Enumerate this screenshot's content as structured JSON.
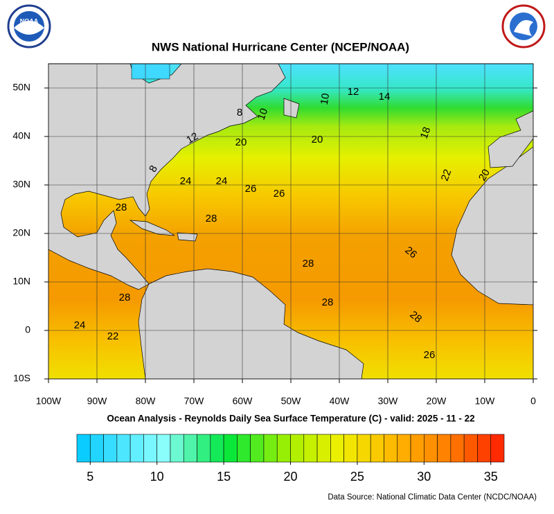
{
  "header": {
    "title": "NWS National Hurricane Center (NCEP/NOAA)",
    "logo_left": "NOAA"
  },
  "map": {
    "lonlim": [
      -100,
      0
    ],
    "latlim": [
      -10,
      55
    ],
    "lon_ticks": [
      {
        "value": -100,
        "label": "100W"
      },
      {
        "value": -90,
        "label": "90W"
      },
      {
        "value": -80,
        "label": "80W"
      },
      {
        "value": -70,
        "label": "70W"
      },
      {
        "value": -60,
        "label": "60W"
      },
      {
        "value": -50,
        "label": "50W"
      },
      {
        "value": -40,
        "label": "40W"
      },
      {
        "value": -30,
        "label": "30W"
      },
      {
        "value": -20,
        "label": "20W"
      },
      {
        "value": -10,
        "label": "10W"
      },
      {
        "value": 0,
        "label": "0"
      }
    ],
    "lat_ticks": [
      {
        "value": 50,
        "label": "50N"
      },
      {
        "value": 40,
        "label": "40N"
      },
      {
        "value": 30,
        "label": "30N"
      },
      {
        "value": 20,
        "label": "20N"
      },
      {
        "value": 10,
        "label": "10N"
      },
      {
        "value": 0,
        "label": "0"
      },
      {
        "value": -10,
        "label": "10S"
      }
    ],
    "contour_labels": [
      8,
      10,
      10,
      12,
      12,
      14,
      18,
      20,
      20,
      22,
      20,
      8,
      24,
      24,
      26,
      26,
      28,
      28,
      28,
      26,
      28,
      28,
      28,
      24,
      22,
      26
    ],
    "grid": true
  },
  "subtitle": "Ocean Analysis - Reynolds Daily Sea Surface Temperature (C) - valid: 2025 - 11 - 22",
  "colorbar": {
    "lim": [
      4,
      36
    ],
    "ticks": [
      5,
      10,
      15,
      20,
      25,
      30,
      35
    ]
  },
  "source": "Data Source: National Climatic Data Center (NCDC/NOAA)"
}
